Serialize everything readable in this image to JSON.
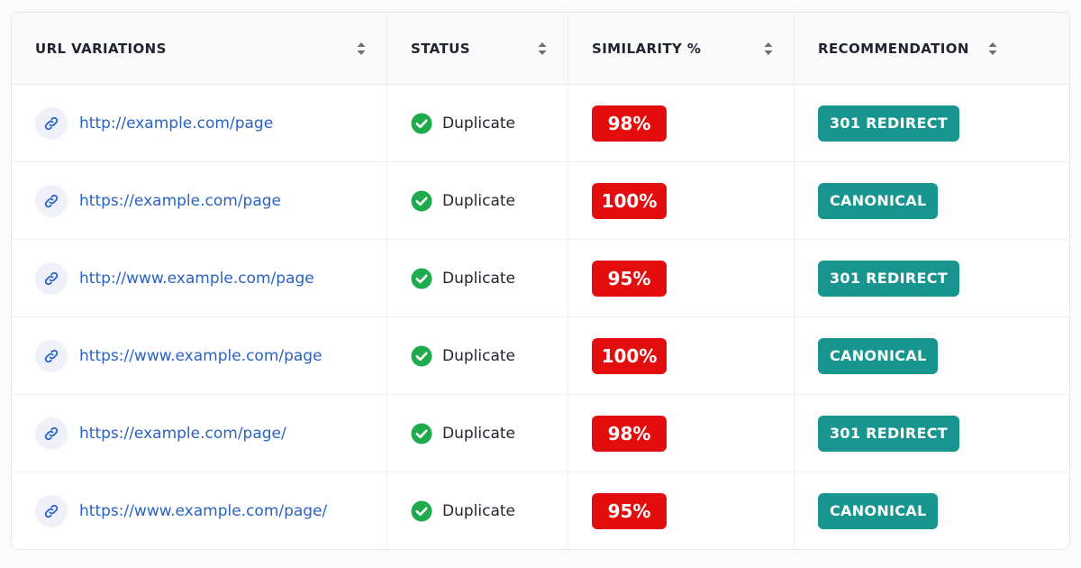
{
  "table": {
    "headers": [
      "URL VARIATIONS",
      "STATUS",
      "SIMILARITY %",
      "RECOMMENDATION"
    ],
    "rows": [
      [
        "http://example.com/page",
        "Duplicate",
        "98%",
        "301 REDIRECT"
      ],
      [
        "https://example.com/page",
        "Duplicate",
        "100%",
        "CANONICAL"
      ],
      [
        "http://www.example.com/page",
        "Duplicate",
        "95%",
        "301 REDIRECT"
      ],
      [
        "https://www.example.com/page",
        "Duplicate",
        "100%",
        "CANONICAL"
      ],
      [
        "https://example.com/page/",
        "Duplicate",
        "98%",
        "301 REDIRECT"
      ],
      [
        "https://www.example.com/page/",
        "Duplicate",
        "95%",
        "CANONICAL"
      ]
    ]
  }
}
